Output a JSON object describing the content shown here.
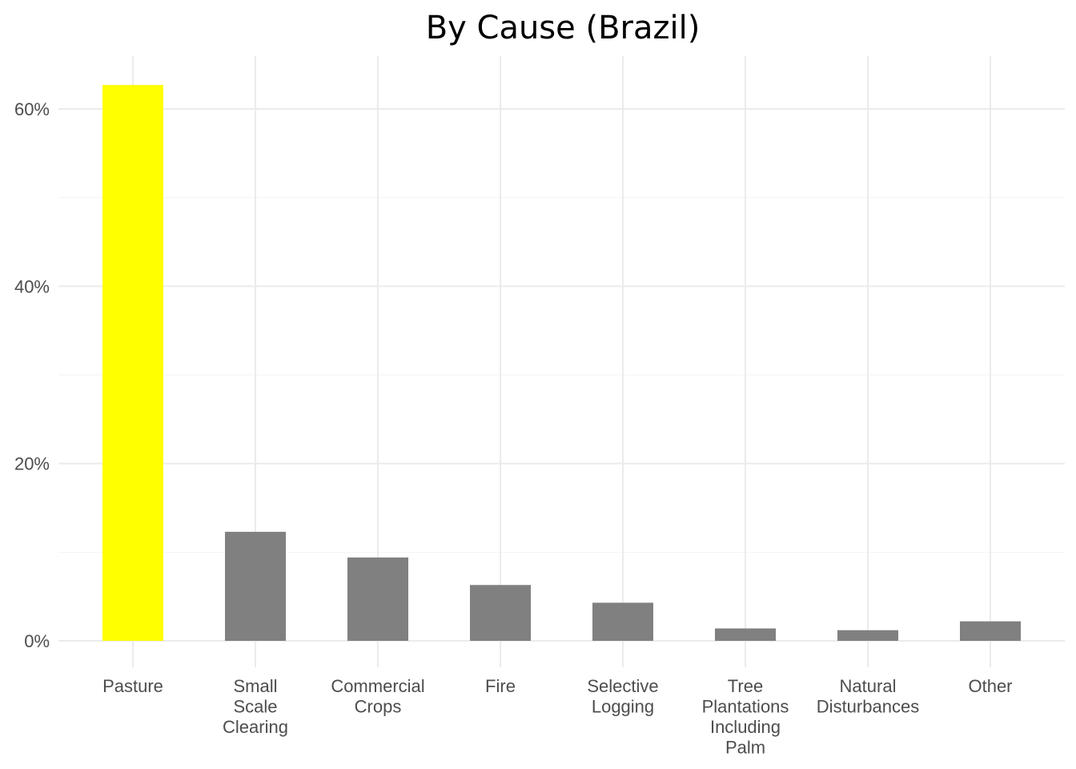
{
  "chart_data": {
    "type": "bar",
    "title": "By Cause (Brazil)",
    "xlabel": "",
    "ylabel": "",
    "categories": [
      "Pasture",
      "Small Scale Clearing",
      "Commercial Crops",
      "Fire",
      "Selective Logging",
      "Tree Plantations Including Palm",
      "Natural Disturbances",
      "Other"
    ],
    "category_lines": [
      [
        "Pasture"
      ],
      [
        "Small",
        "Scale",
        "Clearing"
      ],
      [
        "Commercial",
        "Crops"
      ],
      [
        "Fire"
      ],
      [
        "Selective",
        "Logging"
      ],
      [
        "Tree",
        "Plantations",
        "Including",
        "Palm"
      ],
      [
        "Natural",
        "Disturbances"
      ],
      [
        "Other"
      ]
    ],
    "values": [
      62.7,
      12.3,
      9.4,
      6.3,
      4.3,
      1.4,
      1.2,
      2.2
    ],
    "bar_colors": [
      "#ffff00",
      "#808080",
      "#808080",
      "#808080",
      "#808080",
      "#808080",
      "#808080",
      "#808080"
    ],
    "yticks": [
      0,
      20,
      40,
      60
    ],
    "ytick_labels": [
      "0%",
      "20%",
      "40%",
      "60%"
    ],
    "ylim": [
      -3,
      66
    ],
    "grid": true,
    "legend": "none"
  }
}
